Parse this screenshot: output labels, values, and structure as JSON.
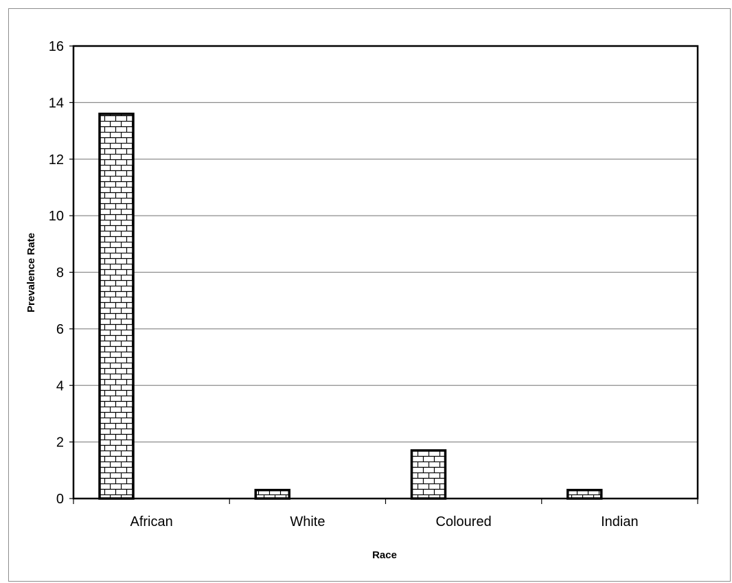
{
  "chart_data": {
    "type": "bar",
    "categories": [
      "African",
      "White",
      "Coloured",
      "Indian"
    ],
    "values": [
      13.6,
      0.3,
      1.7,
      0.3
    ],
    "xlabel": "Race",
    "ylabel": "Prevalence Rate",
    "ylim": [
      0,
      16
    ],
    "yticks": [
      "0",
      "2",
      "4",
      "6",
      "8",
      "10",
      "12",
      "14",
      "16"
    ],
    "grid": true,
    "legend": "none",
    "bar_fill": "brick-pattern",
    "colors": {
      "bar_outline": "#000000",
      "grid": "#8c8c8c",
      "plot_border": "#000000"
    }
  }
}
